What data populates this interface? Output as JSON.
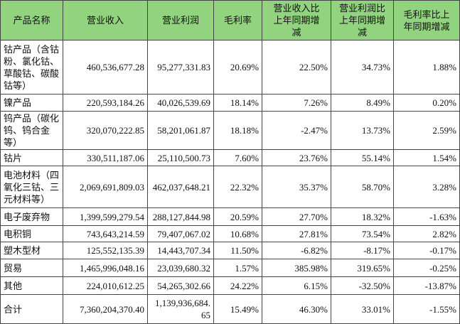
{
  "table": {
    "header": [
      "产品名称",
      "营业收入",
      "营业利润",
      "毛利率",
      "营业收入比上年同期增减",
      "营业利润比上年同期增减",
      "毛利率比上年同期增减"
    ],
    "rows": [
      [
        "钴产品（含钴粉、氯化钴、草酸钴、碳酸钴等）",
        "460,536,677.28",
        "95,277,331.83",
        "20.69%",
        "22.50%",
        "34.73%",
        "1.88%"
      ],
      [
        "镍产品",
        "220,593,184.26",
        "40,026,539.69",
        "18.14%",
        "7.26%",
        "8.49%",
        "0.20%"
      ],
      [
        "钨产品（碳化钨、钨合金等）",
        "320,070,222.85",
        "58,201,061.87",
        "18.18%",
        "-2.47%",
        "13.73%",
        "2.59%"
      ],
      [
        "钴片",
        "330,511,187.06",
        "25,110,500.73",
        "7.60%",
        "23.76%",
        "55.14%",
        "1.54%"
      ],
      [
        "电池材料（四氧化三钴、三元材料等）",
        "2,069,691,809.03",
        "462,037,648.21",
        "22.32%",
        "35.37%",
        "58.70%",
        "3.28%"
      ],
      [
        "电子废弃物",
        "1,399,599,279.54",
        "288,127,844.98",
        "20.59%",
        "27.70%",
        "18.32%",
        "-1.63%"
      ],
      [
        "电积铜",
        "743,643,214.59",
        "79,407,067.02",
        "10.68%",
        "27.81%",
        "73.54%",
        "2.82%"
      ],
      [
        "塑木型材",
        "125,552,135.39",
        "14,443,707.34",
        "11.50%",
        "-6.82%",
        "-8.17%",
        "-0.17%"
      ],
      [
        "贸易",
        "1,465,996,048.16",
        "23,039,680.32",
        "1.57%",
        "385.98%",
        "319.65%",
        "-0.25%"
      ],
      [
        "其他",
        "224,010,612.25",
        "54,265,302.66",
        "24.22%",
        "6.15%",
        "-32.50%",
        "-13.87%"
      ],
      [
        "合计",
        "7,360,204,370.40",
        "1,139,936,684.65",
        "15.49%",
        "46.30%",
        "33.01%",
        "-1.55%"
      ]
    ]
  }
}
